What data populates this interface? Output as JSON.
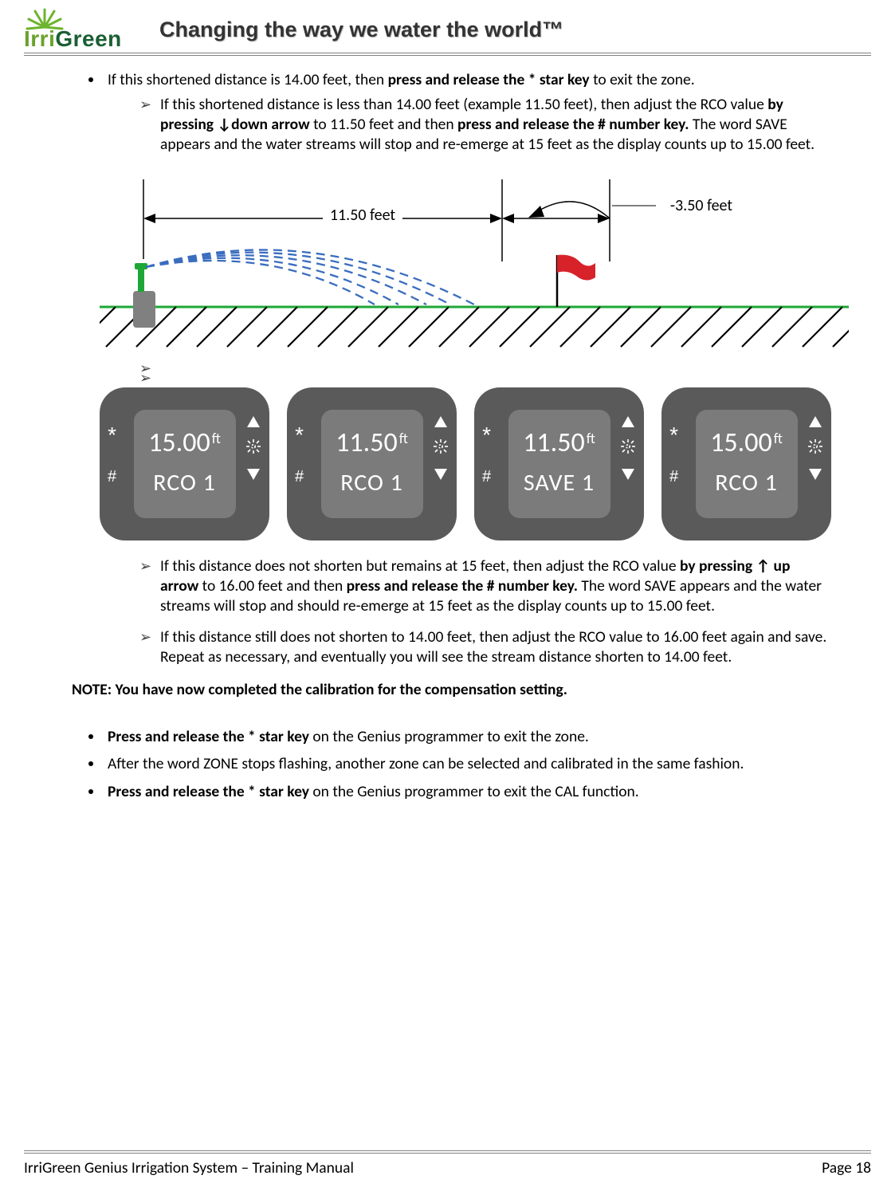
{
  "header": {
    "logo_irri": "Irri",
    "logo_green": "Green",
    "tagline": "Changing the way we water the world™",
    "ray_color": "#6cb42e",
    "logo_green_color": "#1a5f33"
  },
  "b1": {
    "pre": "If this shortened distance is 14.00 feet, then ",
    "bold": "press and release the * star key",
    "post": " to exit the zone."
  },
  "a1": {
    "pre1": "If this shortened distance is less than 14.00 feet (example 11.50 feet), then adjust the RCO value ",
    "bold1": "by pressing ↓down arrow",
    "mid1": " to 11.50 feet and then ",
    "bold2": "press and release the # number key.",
    "post1": " The word SAVE appears and the water streams will stop and re-emerge at 15 feet as the display counts up to 15.00 feet."
  },
  "diagram": {
    "measure_label": "11.50 feet",
    "offset_label": "-3.50 feet",
    "ground_color": "#1da836",
    "water_color": "#3a6dbf",
    "head_color": "#808080",
    "flag_color": "#d8222a"
  },
  "devices": [
    {
      "value": "15.00",
      "unit": "ft",
      "line2": "RCO   1"
    },
    {
      "value": "11.50",
      "unit": "ft",
      "line2": "RCO   1"
    },
    {
      "value": "11.50",
      "unit": "ft",
      "line2": "SAVE 1"
    },
    {
      "value": "15.00",
      "unit": "ft",
      "line2": "RCO   1"
    }
  ],
  "device_style": {
    "bg": "#5a5a5a",
    "screen_bg": "#7b7b7b",
    "symbol_star": "*",
    "symbol_hash": "#"
  },
  "a2": {
    "pre": "If this distance does not shorten but remains at 15 feet, then adjust the RCO value ",
    "bold1": "by pressing ↑ up arrow",
    "mid": " to 16.00 feet and then ",
    "bold2": "press and release the # number key.",
    "post": " The word SAVE appears and the water streams will stop and should re-emerge at 15 feet as the display counts up to 15.00 feet."
  },
  "a3": {
    "text": "If this distance still does not shorten to 14.00 feet, then adjust the RCO value to 16.00 feet again and save. Repeat as necessary, and eventually you will see the stream distance shorten to 14.00 feet."
  },
  "note": "NOTE: You have now completed the calibration for the compensation setting.",
  "b2": {
    "bold": "Press and release the * star key",
    "post": " on the Genius programmer to exit the zone."
  },
  "b3": {
    "text": "After the word ZONE stops flashing, another zone can be selected and calibrated in the same fashion."
  },
  "b4": {
    "bold": "Press and release the * star key",
    "post": " on the Genius programmer to exit the CAL function."
  },
  "footer": {
    "left": "IrriGreen Genius Irrigation System – Training Manual",
    "right": "Page 18"
  }
}
